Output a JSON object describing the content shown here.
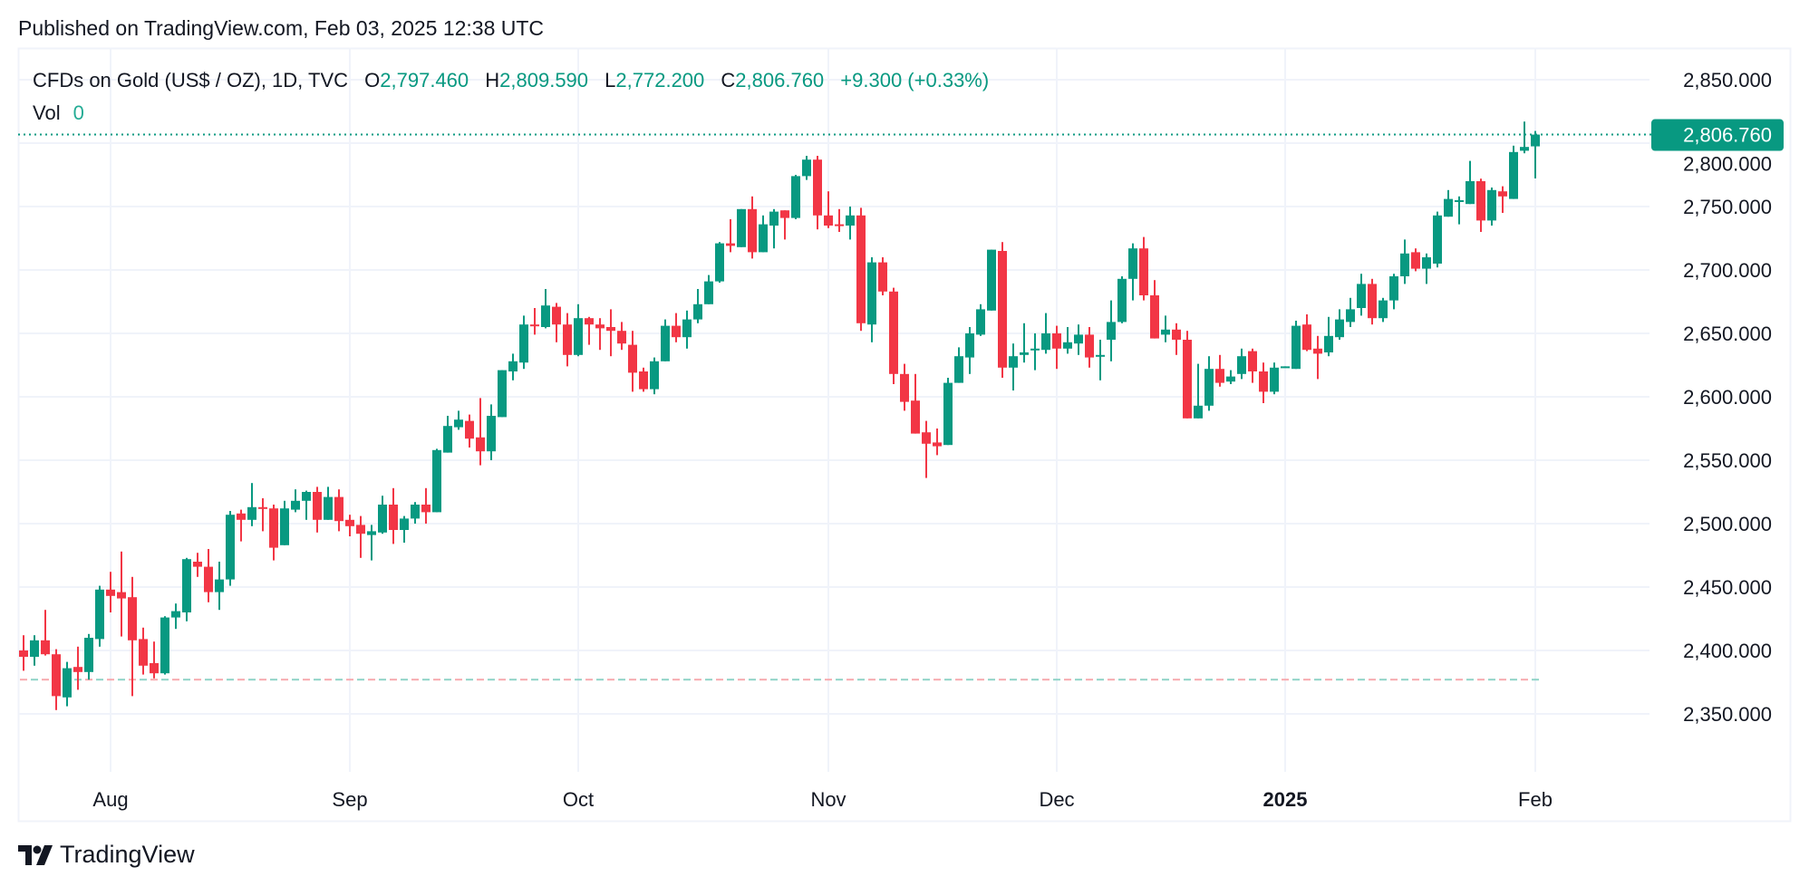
{
  "header": {
    "published": "Published on TradingView.com, Feb 03, 2025 12:38 UTC"
  },
  "legend": {
    "symbol": "CFDs on Gold (US$ / OZ), 1D, TVC",
    "open_label": "O",
    "open": "2,797.460",
    "high_label": "H",
    "high": "2,809.590",
    "low_label": "L",
    "low": "2,772.200",
    "close_label": "C",
    "close": "2,806.760",
    "change": "+9.300 (+0.33%)",
    "vol_label": "Vol",
    "vol": "0"
  },
  "price_tag": "2,806.760",
  "footer": {
    "brand": "TradingView"
  },
  "colors": {
    "up": "#089981",
    "down": "#f23645",
    "grid": "#f0f3fa",
    "text": "#131722"
  },
  "chart_data": {
    "type": "candlestick",
    "interval": "1D",
    "ylim": [
      2300,
      2880
    ],
    "y_ticks": [
      "2,350.000",
      "2,400.000",
      "2,450.000",
      "2,500.000",
      "2,550.000",
      "2,600.000",
      "2,650.000",
      "2,700.000",
      "2,750.000",
      "2,800.000",
      "2,850.000"
    ],
    "y_tick_values": [
      2350,
      2400,
      2450,
      2500,
      2550,
      2600,
      2650,
      2700,
      2750,
      2800,
      2850
    ],
    "x_ticks": [
      {
        "label": "Aug",
        "bar": 8,
        "bold": false
      },
      {
        "label": "Sep",
        "bar": 30,
        "bold": false
      },
      {
        "label": "Oct",
        "bar": 51,
        "bold": false
      },
      {
        "label": "Nov",
        "bar": 74,
        "bold": false
      },
      {
        "label": "Dec",
        "bar": 95,
        "bold": false
      },
      {
        "label": "2025",
        "bar": 116,
        "bold": true
      },
      {
        "label": "Feb",
        "bar": 139,
        "bold": false
      }
    ],
    "grid": true,
    "last_price": 2806.76,
    "reference_line": 2377,
    "ohlc_columns": [
      "open",
      "high",
      "low",
      "close"
    ],
    "candles": [
      [
        2400,
        2412,
        2384,
        2395
      ],
      [
        2395,
        2412,
        2388,
        2408
      ],
      [
        2408,
        2432,
        2396,
        2397
      ],
      [
        2397,
        2401,
        2353,
        2364
      ],
      [
        2363,
        2391,
        2356,
        2386
      ],
      [
        2387,
        2403,
        2369,
        2383
      ],
      [
        2383,
        2413,
        2377,
        2410
      ],
      [
        2409,
        2451,
        2403,
        2448
      ],
      [
        2448,
        2462,
        2430,
        2443
      ],
      [
        2446,
        2478,
        2411,
        2441
      ],
      [
        2442,
        2458,
        2364,
        2408
      ],
      [
        2409,
        2418,
        2381,
        2388
      ],
      [
        2390,
        2407,
        2378,
        2382
      ],
      [
        2382,
        2427,
        2381,
        2426
      ],
      [
        2426,
        2437,
        2417,
        2431
      ],
      [
        2430,
        2473,
        2423,
        2472
      ],
      [
        2470,
        2477,
        2458,
        2466
      ],
      [
        2466,
        2480,
        2438,
        2446
      ],
      [
        2446,
        2470,
        2432,
        2456
      ],
      [
        2456,
        2510,
        2451,
        2507
      ],
      [
        2508,
        2511,
        2486,
        2503
      ],
      [
        2503,
        2532,
        2498,
        2513
      ],
      [
        2513,
        2520,
        2494,
        2512
      ],
      [
        2512,
        2515,
        2471,
        2481
      ],
      [
        2483,
        2518,
        2483,
        2512
      ],
      [
        2511,
        2527,
        2509,
        2518
      ],
      [
        2518,
        2526,
        2503,
        2525
      ],
      [
        2525,
        2529,
        2493,
        2503
      ],
      [
        2503,
        2529,
        2503,
        2521
      ],
      [
        2521,
        2527,
        2494,
        2502
      ],
      [
        2503,
        2507,
        2490,
        2498
      ],
      [
        2499,
        2506,
        2473,
        2492
      ],
      [
        2491,
        2499,
        2471,
        2494
      ],
      [
        2493,
        2522,
        2492,
        2515
      ],
      [
        2515,
        2528,
        2484,
        2495
      ],
      [
        2495,
        2506,
        2485,
        2504
      ],
      [
        2504,
        2517,
        2500,
        2515
      ],
      [
        2515,
        2528,
        2500,
        2509
      ],
      [
        2509,
        2559,
        2509,
        2558
      ],
      [
        2556,
        2585,
        2556,
        2577
      ],
      [
        2576,
        2589,
        2574,
        2582
      ],
      [
        2581,
        2586,
        2560,
        2567
      ],
      [
        2568,
        2599,
        2546,
        2557
      ],
      [
        2557,
        2594,
        2550,
        2585
      ],
      [
        2584,
        2621,
        2584,
        2621
      ],
      [
        2620,
        2634,
        2613,
        2628
      ],
      [
        2627,
        2664,
        2622,
        2657
      ],
      [
        2657,
        2670,
        2649,
        2656
      ],
      [
        2655,
        2685,
        2654,
        2672
      ],
      [
        2671,
        2674,
        2643,
        2657
      ],
      [
        2657,
        2666,
        2624,
        2633
      ],
      [
        2633,
        2673,
        2632,
        2662
      ],
      [
        2662,
        2663,
        2641,
        2657
      ],
      [
        2657,
        2662,
        2637,
        2654
      ],
      [
        2655,
        2669,
        2632,
        2652
      ],
      [
        2652,
        2659,
        2637,
        2642
      ],
      [
        2641,
        2652,
        2604,
        2619
      ],
      [
        2620,
        2623,
        2604,
        2606
      ],
      [
        2606,
        2631,
        2602,
        2628
      ],
      [
        2628,
        2661,
        2628,
        2656
      ],
      [
        2656,
        2666,
        2643,
        2647
      ],
      [
        2647,
        2668,
        2638,
        2661
      ],
      [
        2661,
        2685,
        2658,
        2673
      ],
      [
        2673,
        2696,
        2673,
        2691
      ],
      [
        2691,
        2722,
        2690,
        2721
      ],
      [
        2721,
        2740,
        2714,
        2719
      ],
      [
        2718,
        2748,
        2718,
        2748
      ],
      [
        2748,
        2758,
        2709,
        2714
      ],
      [
        2714,
        2743,
        2714,
        2736
      ],
      [
        2735,
        2748,
        2717,
        2746
      ],
      [
        2747,
        2747,
        2724,
        2741
      ],
      [
        2741,
        2775,
        2740,
        2774
      ],
      [
        2774,
        2790,
        2771,
        2787
      ],
      [
        2787,
        2790,
        2732,
        2743
      ],
      [
        2743,
        2762,
        2733,
        2735
      ],
      [
        2736,
        2748,
        2730,
        2735
      ],
      [
        2735,
        2750,
        2724,
        2743
      ],
      [
        2743,
        2749,
        2652,
        2658
      ],
      [
        2657,
        2710,
        2643,
        2706
      ],
      [
        2706,
        2710,
        2680,
        2683
      ],
      [
        2683,
        2686,
        2610,
        2618
      ],
      [
        2618,
        2626,
        2589,
        2596
      ],
      [
        2597,
        2618,
        2571,
        2571
      ],
      [
        2572,
        2581,
        2536,
        2563
      ],
      [
        2564,
        2575,
        2554,
        2561
      ],
      [
        2562,
        2615,
        2562,
        2611
      ],
      [
        2611,
        2639,
        2611,
        2632
      ],
      [
        2631,
        2655,
        2618,
        2650
      ],
      [
        2649,
        2673,
        2648,
        2669
      ],
      [
        2668,
        2716,
        2668,
        2716
      ],
      [
        2715,
        2722,
        2615,
        2623
      ],
      [
        2623,
        2642,
        2605,
        2632
      ],
      [
        2633,
        2658,
        2627,
        2635
      ],
      [
        2637,
        2650,
        2621,
        2638
      ],
      [
        2637,
        2666,
        2634,
        2650
      ],
      [
        2650,
        2656,
        2622,
        2638
      ],
      [
        2638,
        2655,
        2634,
        2643
      ],
      [
        2642,
        2657,
        2633,
        2649
      ],
      [
        2649,
        2655,
        2623,
        2631
      ],
      [
        2632,
        2645,
        2613,
        2633
      ],
      [
        2645,
        2676,
        2628,
        2659
      ],
      [
        2659,
        2695,
        2658,
        2693
      ],
      [
        2693,
        2721,
        2676,
        2717
      ],
      [
        2717,
        2726,
        2676,
        2680
      ],
      [
        2680,
        2692,
        2646,
        2646
      ],
      [
        2649,
        2664,
        2643,
        2653
      ],
      [
        2653,
        2658,
        2633,
        2645
      ],
      [
        2645,
        2652,
        2583,
        2583
      ],
      [
        2583,
        2626,
        2583,
        2593
      ],
      [
        2593,
        2632,
        2589,
        2622
      ],
      [
        2622,
        2633,
        2608,
        2611
      ],
      [
        2612,
        2621,
        2610,
        2616
      ],
      [
        2618,
        2638,
        2614,
        2632
      ],
      [
        2636,
        2638,
        2611,
        2620
      ],
      [
        2620,
        2627,
        2595,
        2604
      ],
      [
        2604,
        2627,
        2602,
        2623
      ],
      [
        2623,
        2624,
        2623,
        2624
      ],
      [
        2622,
        2660,
        2622,
        2656
      ],
      [
        2657,
        2665,
        2636,
        2637
      ],
      [
        2638,
        2648,
        2614,
        2634
      ],
      [
        2635,
        2663,
        2632,
        2648
      ],
      [
        2647,
        2669,
        2645,
        2661
      ],
      [
        2659,
        2678,
        2655,
        2669
      ],
      [
        2670,
        2697,
        2664,
        2689
      ],
      [
        2689,
        2693,
        2657,
        2662
      ],
      [
        2662,
        2678,
        2659,
        2676
      ],
      [
        2676,
        2697,
        2669,
        2695
      ],
      [
        2695,
        2724,
        2689,
        2713
      ],
      [
        2714,
        2717,
        2699,
        2701
      ],
      [
        2701,
        2713,
        2689,
        2710
      ],
      [
        2705,
        2746,
        2702,
        2743
      ],
      [
        2742,
        2763,
        2742,
        2756
      ],
      [
        2754,
        2758,
        2736,
        2755
      ],
      [
        2752,
        2786,
        2752,
        2770
      ],
      [
        2770,
        2772,
        2730,
        2739
      ],
      [
        2739,
        2765,
        2735,
        2763
      ],
      [
        2762,
        2766,
        2745,
        2758
      ],
      [
        2756,
        2798,
        2756,
        2793
      ],
      [
        2794,
        2817,
        2792,
        2797
      ],
      [
        2797.46,
        2809.59,
        2772.2,
        2806.76
      ]
    ]
  }
}
